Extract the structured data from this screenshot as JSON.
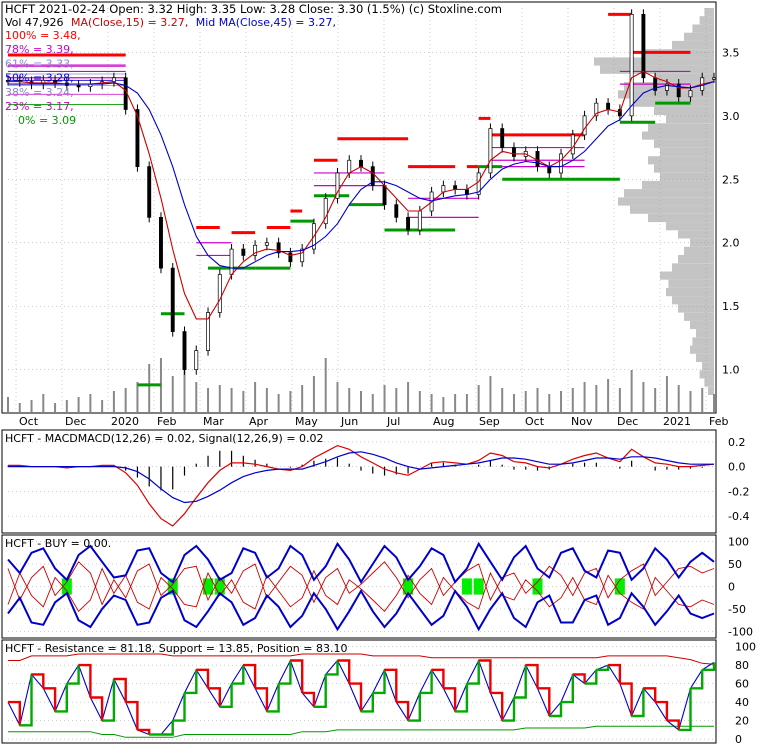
{
  "header": {
    "symbol_line": "HCFT  2021-02-24 Open: 3.32  High: 3.35  Low: 3.28  Close: 3.30 (1.5%)  (c) Stoxline.com",
    "vol_label": "Vol 47,926",
    "ma15_label": "MA(Close,15) = 3.27,",
    "ma45_label": "Mid MA(Close,45) = 3.27,"
  },
  "colors": {
    "price": "#000000",
    "ma15": "#cc0000",
    "ma45": "#0000cc",
    "resistance": "#ff0000",
    "support": "#009900",
    "band": "#cc00cc",
    "grid": "#999999",
    "profile": "#b0b0b0",
    "buy_marker": "#00ee00"
  },
  "chart_data": [
    {
      "type": "candlestick",
      "panel": "price",
      "x_ticks": [
        "Oct",
        "Dec",
        "2020",
        "Feb",
        "Mar",
        "Apr",
        "May",
        "Jun",
        "Jul",
        "Aug",
        "Sep",
        "Oct",
        "Nov",
        "Dec",
        "2021",
        "Feb"
      ],
      "y_ticks": [
        1.0,
        1.5,
        2.0,
        2.5,
        3.0,
        3.5
      ],
      "ylim": [
        0.8,
        3.85
      ],
      "fib_levels": [
        {
          "label": "100% = 3.48,",
          "value": 3.48,
          "color": "#ff0000"
        },
        {
          "label": "78% = 3.39,",
          "value": 3.39,
          "color": "#cc00cc"
        },
        {
          "label": "61% = 3.33,",
          "value": 3.33,
          "color": "#8888cc"
        },
        {
          "label": "50% = 3.28,",
          "value": 3.28,
          "color": "#0000cc"
        },
        {
          "label": "38% = 3.24,",
          "value": 3.24,
          "color": "#8888cc"
        },
        {
          "label": "23% = 3.17,",
          "value": 3.17,
          "color": "#cc00cc"
        },
        {
          "label": "0% = 3.09",
          "value": 3.09,
          "color": "#009900"
        }
      ],
      "price_series": [
        3.28,
        3.27,
        3.25,
        3.28,
        3.26,
        3.24,
        3.23,
        3.25,
        3.27,
        3.3,
        3.05,
        2.6,
        2.2,
        1.8,
        1.3,
        1.0,
        1.15,
        1.45,
        1.75,
        1.95,
        1.9,
        1.98,
        2.0,
        1.92,
        1.85,
        1.95,
        2.15,
        2.35,
        2.55,
        2.65,
        2.6,
        2.45,
        2.3,
        2.2,
        2.1,
        2.25,
        2.4,
        2.45,
        2.42,
        2.38,
        2.55,
        2.9,
        2.75,
        2.68,
        2.72,
        2.6,
        2.55,
        2.7,
        2.85,
        3.0,
        3.1,
        3.05,
        3.0,
        3.8,
        3.3,
        3.2,
        3.25,
        3.15,
        3.2,
        3.3,
        3.3
      ],
      "ma15_series": [
        3.27,
        3.27,
        3.26,
        3.26,
        3.26,
        3.25,
        3.25,
        3.25,
        3.26,
        3.27,
        3.2,
        3.0,
        2.7,
        2.35,
        1.95,
        1.6,
        1.4,
        1.4,
        1.55,
        1.75,
        1.85,
        1.92,
        1.95,
        1.94,
        1.9,
        1.92,
        2.05,
        2.2,
        2.4,
        2.55,
        2.6,
        2.55,
        2.45,
        2.35,
        2.25,
        2.25,
        2.32,
        2.4,
        2.42,
        2.42,
        2.48,
        2.65,
        2.72,
        2.7,
        2.7,
        2.65,
        2.6,
        2.65,
        2.75,
        2.9,
        3.02,
        3.05,
        3.03,
        3.3,
        3.35,
        3.3,
        3.27,
        3.22,
        3.22,
        3.25,
        3.27
      ],
      "ma45_series": [
        3.25,
        3.25,
        3.25,
        3.25,
        3.25,
        3.25,
        3.25,
        3.25,
        3.25,
        3.26,
        3.24,
        3.18,
        3.05,
        2.85,
        2.6,
        2.3,
        2.05,
        1.9,
        1.82,
        1.8,
        1.8,
        1.85,
        1.9,
        1.93,
        1.93,
        1.94,
        1.98,
        2.05,
        2.15,
        2.3,
        2.42,
        2.48,
        2.48,
        2.45,
        2.4,
        2.35,
        2.33,
        2.35,
        2.37,
        2.38,
        2.4,
        2.5,
        2.58,
        2.62,
        2.64,
        2.63,
        2.6,
        2.6,
        2.65,
        2.72,
        2.82,
        2.92,
        2.97,
        3.08,
        3.18,
        3.22,
        3.24,
        3.23,
        3.22,
        3.24,
        3.27
      ],
      "volume_series": [
        0.25,
        0.15,
        0.2,
        0.3,
        0.15,
        0.2,
        0.25,
        0.3,
        0.2,
        0.35,
        0.4,
        0.5,
        0.8,
        0.9,
        0.6,
        0.7,
        0.5,
        0.4,
        0.45,
        0.4,
        0.35,
        0.5,
        0.4,
        0.3,
        0.35,
        0.45,
        0.6,
        0.9,
        0.5,
        0.4,
        0.35,
        0.3,
        0.45,
        0.4,
        0.5,
        0.35,
        0.3,
        0.25,
        0.3,
        0.3,
        0.45,
        0.6,
        0.4,
        0.3,
        0.35,
        0.4,
        0.3,
        0.35,
        0.4,
        0.5,
        0.45,
        0.55,
        0.4,
        0.7,
        0.5,
        0.4,
        0.6,
        0.45,
        0.35,
        0.4,
        0.3
      ],
      "resistance_levels": [
        {
          "from": 0,
          "to": 10,
          "value": 3.48
        },
        {
          "from": 16,
          "to": 18,
          "value": 2.12
        },
        {
          "from": 19,
          "to": 21,
          "value": 2.08
        },
        {
          "from": 22,
          "to": 24,
          "value": 2.12
        },
        {
          "from": 24,
          "to": 25,
          "value": 2.25
        },
        {
          "from": 26,
          "to": 28,
          "value": 2.65
        },
        {
          "from": 28,
          "to": 34,
          "value": 2.82
        },
        {
          "from": 34,
          "to": 38,
          "value": 2.6
        },
        {
          "from": 39,
          "to": 40,
          "value": 2.6
        },
        {
          "from": 40,
          "to": 41,
          "value": 2.98
        },
        {
          "from": 41,
          "to": 49,
          "value": 2.85
        },
        {
          "from": 51,
          "to": 53,
          "value": 3.8
        },
        {
          "from": 53,
          "to": 58,
          "value": 3.5
        }
      ],
      "support_levels": [
        {
          "from": 11,
          "to": 13,
          "value": 0.88
        },
        {
          "from": 13,
          "to": 15,
          "value": 1.44
        },
        {
          "from": 17,
          "to": 21,
          "value": 1.8
        },
        {
          "from": 21,
          "to": 24,
          "value": 1.8
        },
        {
          "from": 24,
          "to": 26,
          "value": 2.17
        },
        {
          "from": 26,
          "to": 29,
          "value": 2.37
        },
        {
          "from": 29,
          "to": 32,
          "value": 2.3
        },
        {
          "from": 32,
          "to": 38,
          "value": 2.1
        },
        {
          "from": 40,
          "to": 42,
          "value": 2.6
        },
        {
          "from": 42,
          "to": 52,
          "value": 2.5
        },
        {
          "from": 52,
          "to": 55,
          "value": 2.95
        },
        {
          "from": 55,
          "to": 58,
          "value": 3.1
        }
      ],
      "band_levels": [
        {
          "from": 0,
          "to": 10,
          "value": 3.4
        },
        {
          "from": 0,
          "to": 10,
          "value": 3.35
        },
        {
          "from": 0,
          "to": 10,
          "value": 3.3
        },
        {
          "from": 16,
          "to": 19,
          "value": 2.0
        },
        {
          "from": 16,
          "to": 19,
          "value": 1.9
        },
        {
          "from": 26,
          "to": 32,
          "value": 2.55
        },
        {
          "from": 26,
          "to": 32,
          "value": 2.45
        },
        {
          "from": 34,
          "to": 40,
          "value": 2.35
        },
        {
          "from": 34,
          "to": 40,
          "value": 2.2
        },
        {
          "from": 41,
          "to": 49,
          "value": 2.75
        },
        {
          "from": 41,
          "to": 49,
          "value": 2.65
        },
        {
          "from": 41,
          "to": 49,
          "value": 2.6
        },
        {
          "from": 52,
          "to": 58,
          "value": 3.35
        },
        {
          "from": 52,
          "to": 58,
          "value": 3.25
        }
      ],
      "volume_profile": [
        0.05,
        0.08,
        0.12,
        0.1,
        0.15,
        0.2,
        0.18,
        0.15,
        0.2,
        0.25,
        0.3,
        0.35,
        0.4,
        0.38,
        0.45,
        0.35,
        0.3,
        0.25,
        0.2,
        0.3,
        0.4,
        0.55,
        0.7,
        0.8,
        0.75,
        0.6,
        0.45,
        0.5,
        0.55,
        0.45,
        0.5,
        0.6,
        0.55,
        0.4,
        0.5,
        0.7,
        0.8,
        0.75,
        0.5,
        0.95,
        1.0,
        0.6,
        0.35,
        0.25,
        0.18,
        0.12,
        0.08
      ]
    },
    {
      "type": "line",
      "panel": "macd",
      "title": "HCFT - MACDMACD(12,26) = 0.02, Signal(12,26,9) = 0.02",
      "y_ticks": [
        0.2,
        0.0,
        -0.2,
        -0.4
      ],
      "ylim": [
        -0.52,
        0.28
      ],
      "macd_series": [
        0.01,
        0.01,
        0.0,
        0.0,
        0.0,
        -0.01,
        0.0,
        0.0,
        0.01,
        0.01,
        -0.05,
        -0.15,
        -0.3,
        -0.42,
        -0.48,
        -0.38,
        -0.25,
        -0.13,
        -0.03,
        0.03,
        0.03,
        0.02,
        0.0,
        -0.02,
        -0.03,
        0.0,
        0.07,
        0.12,
        0.17,
        0.14,
        0.08,
        0.03,
        -0.02,
        -0.05,
        -0.07,
        -0.02,
        0.03,
        0.04,
        0.03,
        0.02,
        0.05,
        0.11,
        0.09,
        0.04,
        0.03,
        0.0,
        -0.01,
        0.02,
        0.06,
        0.09,
        0.11,
        0.07,
        0.04,
        0.14,
        0.08,
        0.03,
        0.02,
        0.0,
        0.0,
        0.01,
        0.02
      ],
      "signal_series": [
        0.0,
        0.0,
        0.0,
        0.0,
        0.0,
        0.0,
        0.0,
        0.0,
        0.0,
        0.0,
        -0.01,
        -0.04,
        -0.1,
        -0.18,
        -0.25,
        -0.29,
        -0.28,
        -0.24,
        -0.19,
        -0.13,
        -0.08,
        -0.05,
        -0.03,
        -0.02,
        -0.02,
        -0.02,
        0.01,
        0.04,
        0.08,
        0.11,
        0.12,
        0.1,
        0.07,
        0.03,
        0.0,
        -0.02,
        -0.01,
        0.0,
        0.01,
        0.02,
        0.03,
        0.05,
        0.07,
        0.07,
        0.06,
        0.04,
        0.02,
        0.02,
        0.03,
        0.05,
        0.07,
        0.07,
        0.06,
        0.08,
        0.08,
        0.07,
        0.05,
        0.03,
        0.02,
        0.02,
        0.02
      ]
    },
    {
      "type": "line",
      "panel": "buy",
      "title": "HCFT - BUY = 0.00.",
      "y_ticks": [
        100,
        50,
        0,
        -50,
        -100
      ],
      "ylim": [
        -110,
        110
      ],
      "upper_series": [
        60,
        30,
        75,
        85,
        40,
        15,
        70,
        90,
        55,
        20,
        25,
        80,
        85,
        30,
        10,
        70,
        90,
        60,
        15,
        30,
        85,
        75,
        20,
        40,
        90,
        70,
        15,
        45,
        95,
        60,
        10,
        50,
        90,
        65,
        15,
        45,
        85,
        70,
        10,
        40,
        95,
        55,
        15,
        65,
        90,
        40,
        20,
        75,
        85,
        35,
        20,
        80,
        75,
        15,
        40,
        85,
        60,
        20,
        55,
        75,
        55
      ],
      "lower_series": [
        -60,
        -25,
        -80,
        -85,
        -35,
        -15,
        -75,
        -90,
        -50,
        -20,
        -30,
        -85,
        -80,
        -25,
        -10,
        -75,
        -90,
        -55,
        -15,
        -35,
        -85,
        -70,
        -20,
        -45,
        -90,
        -65,
        -15,
        -50,
        -95,
        -55,
        -10,
        -55,
        -90,
        -60,
        -15,
        -50,
        -85,
        -65,
        -10,
        -45,
        -95,
        -50,
        -15,
        -70,
        -90,
        -35,
        -20,
        -80,
        -80,
        -30,
        -20,
        -85,
        -70,
        -15,
        -45,
        -85,
        -55,
        -20,
        -60,
        -70,
        -60
      ],
      "red_series": [
        40,
        -30,
        20,
        45,
        -20,
        10,
        55,
        30,
        -40,
        15,
        -25,
        35,
        50,
        -20,
        5,
        40,
        45,
        -30,
        20,
        -15,
        35,
        50,
        -25,
        10,
        45,
        25,
        -35,
        20,
        40,
        -15,
        5,
        30,
        55,
        20,
        -25,
        15,
        40,
        -20,
        10,
        35,
        50,
        -30,
        20,
        30,
        -15,
        10,
        45,
        25,
        -20,
        30,
        40,
        -25,
        15,
        35,
        50,
        -20,
        10,
        40,
        45,
        30,
        40
      ],
      "red_series_b": [
        -40,
        30,
        -20,
        -45,
        20,
        -10,
        -55,
        -30,
        40,
        -15,
        25,
        -35,
        -50,
        20,
        -5,
        -40,
        -45,
        30,
        -20,
        15,
        -35,
        -50,
        25,
        -10,
        -45,
        -25,
        35,
        -20,
        -40,
        15,
        -5,
        -30,
        -55,
        -20,
        25,
        -15,
        -40,
        20,
        -10,
        -35,
        -50,
        30,
        -20,
        -30,
        15,
        -10,
        -45,
        -25,
        20,
        -30,
        -40,
        25,
        -15,
        -35,
        -50,
        20,
        -10,
        -40,
        -45,
        -30,
        -40
      ],
      "buy_marker_indices": [
        5,
        14,
        17,
        18,
        34,
        39,
        40,
        45,
        52
      ]
    },
    {
      "type": "line",
      "panel": "position",
      "title": "HCFT - Resistance = 81.18, Support = 13.85, Position = 83.10",
      "y_ticks": [
        100,
        80,
        60,
        40,
        20,
        0
      ],
      "ylim": [
        -2,
        105
      ],
      "resistance_series": [
        85,
        85,
        90,
        90,
        90,
        90,
        92,
        92,
        92,
        92,
        92,
        92,
        92,
        92,
        90,
        90,
        90,
        90,
        90,
        90,
        90,
        90,
        90,
        90,
        90,
        92,
        92,
        92,
        92,
        92,
        92,
        90,
        90,
        90,
        90,
        90,
        88,
        88,
        88,
        88,
        88,
        88,
        88,
        88,
        88,
        88,
        88,
        88,
        88,
        88,
        88,
        90,
        90,
        90,
        90,
        90,
        90,
        88,
        86,
        82,
        81
      ],
      "support_series": [
        8,
        8,
        8,
        8,
        8,
        8,
        8,
        8,
        5,
        5,
        2,
        2,
        2,
        2,
        2,
        5,
        5,
        5,
        5,
        5,
        5,
        5,
        5,
        5,
        5,
        8,
        8,
        8,
        10,
        10,
        10,
        10,
        10,
        10,
        10,
        10,
        10,
        10,
        10,
        10,
        10,
        10,
        10,
        10,
        12,
        12,
        12,
        12,
        12,
        12,
        14,
        14,
        14,
        14,
        14,
        14,
        14,
        14,
        14,
        14,
        14
      ],
      "position_series": [
        40,
        15,
        70,
        55,
        30,
        60,
        80,
        45,
        20,
        65,
        40,
        10,
        5,
        5,
        20,
        50,
        75,
        55,
        35,
        60,
        80,
        55,
        30,
        60,
        85,
        50,
        35,
        70,
        85,
        60,
        30,
        50,
        75,
        40,
        20,
        50,
        75,
        55,
        30,
        60,
        85,
        50,
        20,
        45,
        80,
        55,
        25,
        40,
        70,
        60,
        75,
        80,
        60,
        25,
        55,
        40,
        20,
        10,
        55,
        75,
        83
      ]
    }
  ]
}
